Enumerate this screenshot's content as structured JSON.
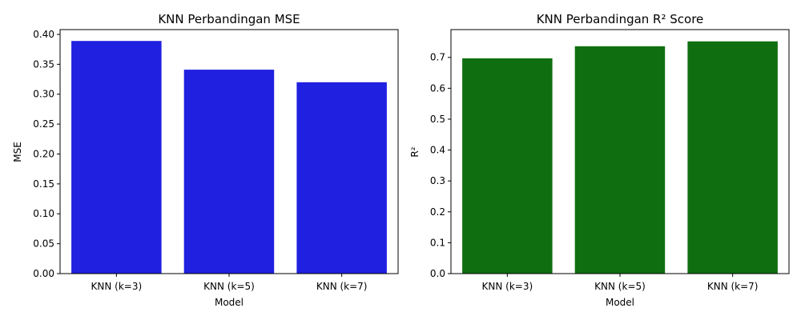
{
  "chart_data": [
    {
      "type": "bar",
      "title": "KNN Perbandingan MSE",
      "xlabel": "Model",
      "ylabel": "MSE",
      "categories": [
        "KNN (k=3)",
        "KNN (k=5)",
        "KNN (k=7)"
      ],
      "values": [
        0.389,
        0.341,
        0.32
      ],
      "ylim": [
        0,
        0.408
      ],
      "yticks": [
        0.0,
        0.05,
        0.1,
        0.15,
        0.2,
        0.25,
        0.3,
        0.35,
        0.4
      ],
      "ytick_labels": [
        "0.00",
        "0.05",
        "0.10",
        "0.15",
        "0.20",
        "0.25",
        "0.30",
        "0.35",
        "0.40"
      ],
      "color": "#2020e0",
      "grid": false,
      "legend": "none"
    },
    {
      "type": "bar",
      "title": "KNN Perbandingan R² Score",
      "xlabel": "Model",
      "ylabel": "R²",
      "categories": [
        "KNN (k=3)",
        "KNN (k=5)",
        "KNN (k=7)"
      ],
      "values": [
        0.697,
        0.736,
        0.752
      ],
      "ylim": [
        0,
        0.79
      ],
      "yticks": [
        0.0,
        0.1,
        0.2,
        0.3,
        0.4,
        0.5,
        0.6,
        0.7
      ],
      "ytick_labels": [
        "0.0",
        "0.1",
        "0.2",
        "0.3",
        "0.4",
        "0.5",
        "0.6",
        "0.7"
      ],
      "color": "#0f6f10",
      "grid": false,
      "legend": "none"
    }
  ]
}
